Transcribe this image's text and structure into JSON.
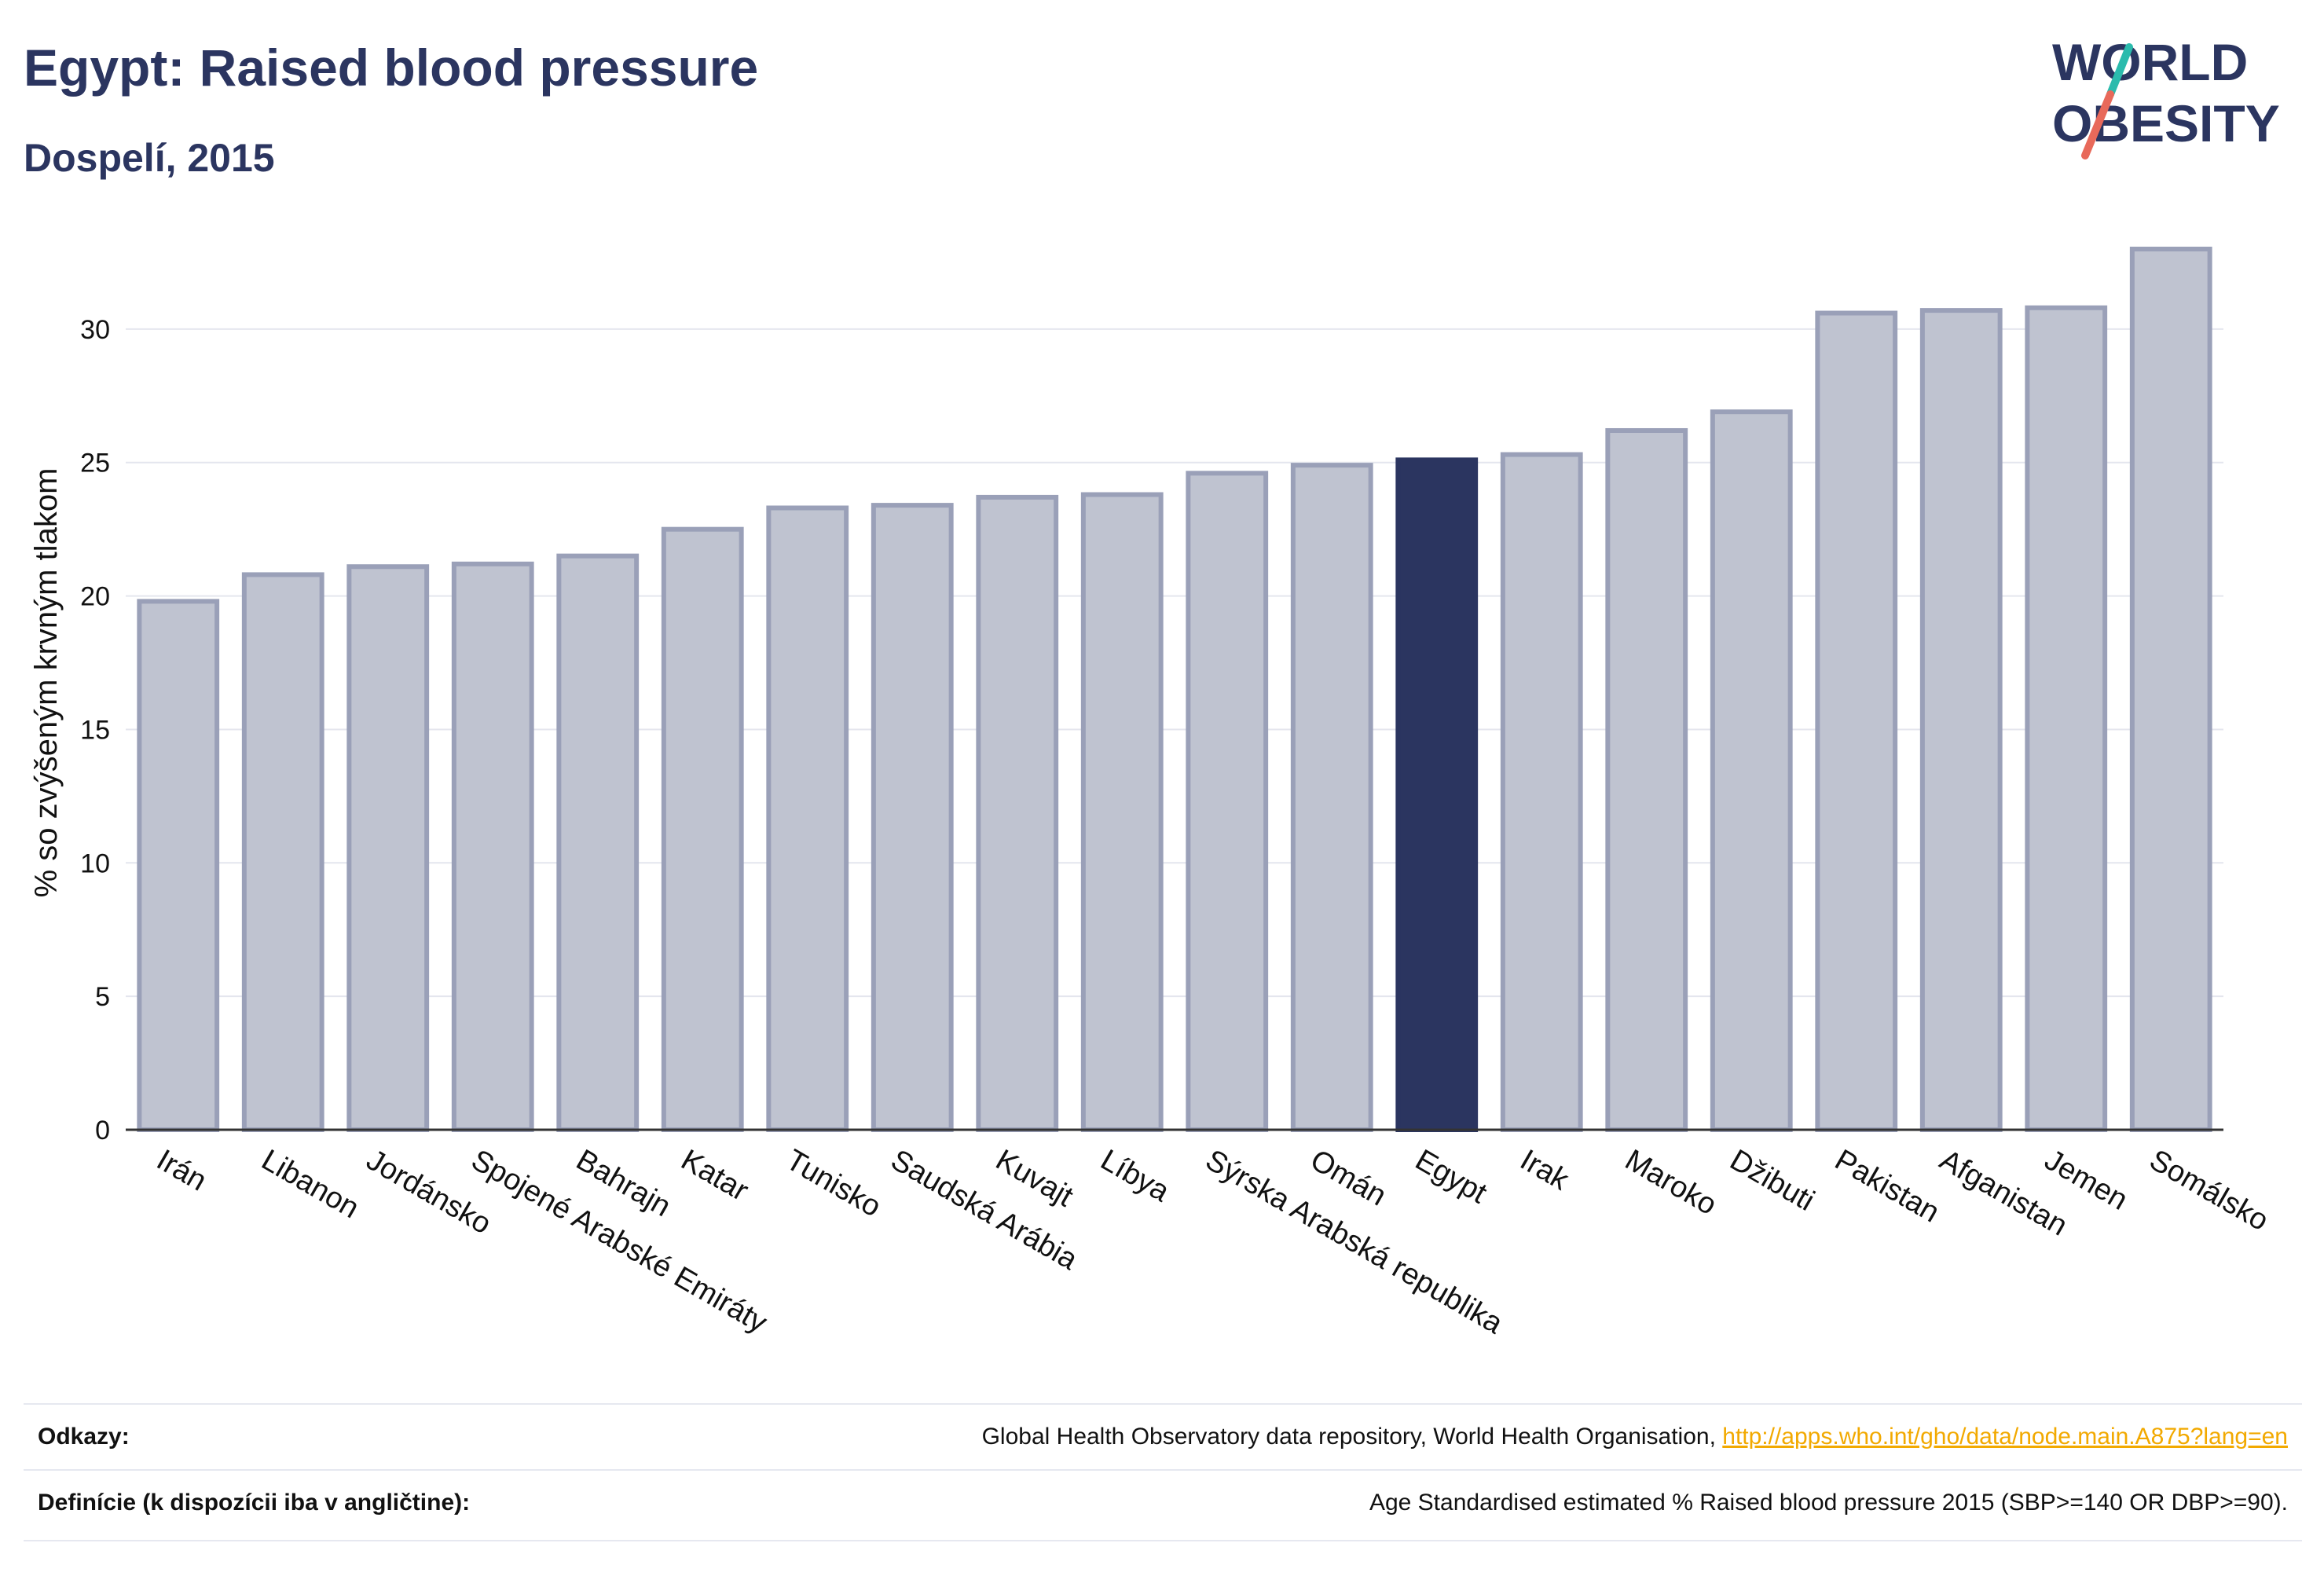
{
  "header": {
    "title": "Egypt: Raised blood pressure",
    "subtitle": "Dospelí, 2015",
    "logo_line1": "WORLD",
    "logo_line2": "OBESITY"
  },
  "colors": {
    "highlight": "#2b3560",
    "bar_fill": "#bfc3d0",
    "bar_stroke": "#9aa0b8",
    "logo_teal": "#2bbbad",
    "logo_coral": "#e8695a"
  },
  "chart_data": {
    "type": "bar",
    "title": "Egypt: Raised blood pressure",
    "subtitle": "Dospelí, 2015",
    "xlabel": "",
    "ylabel": "% so zvýšeným krvným tlakom",
    "ylim": [
      0,
      33.5
    ],
    "yticks": [
      0,
      5,
      10,
      15,
      20,
      25,
      30
    ],
    "grid": true,
    "highlight_category": "Egypt",
    "categories": [
      "Irán",
      "Libanon",
      "Jordánsko",
      "Spojené Arabské Emiráty",
      "Bahrajn",
      "Katar",
      "Tunisko",
      "Saudská Arábia",
      "Kuvajt",
      "Líbya",
      "Sýrska Arabská republika",
      "Omán",
      "Egypt",
      "Irak",
      "Maroko",
      "Džibuti",
      "Pakistan",
      "Afganistan",
      "Jemen",
      "Somálsko"
    ],
    "values": [
      19.8,
      20.8,
      21.1,
      21.2,
      21.5,
      22.5,
      23.3,
      23.4,
      23.7,
      23.8,
      24.6,
      24.9,
      25.1,
      25.3,
      26.2,
      26.9,
      30.6,
      30.7,
      30.8,
      33.0
    ]
  },
  "footer": {
    "references_label": "Odkazy:",
    "references_text": "Global Health Observatory data repository, World Health Organisation, ",
    "references_link": "http://apps.who.int/gho/data/node.main.A875?lang=en",
    "definitions_label": "Definície (k dispozícii iba v angličtine):",
    "definitions_text": "Age Standardised estimated % Raised blood pressure 2015 (SBP>=140 OR DBP>=90)."
  }
}
